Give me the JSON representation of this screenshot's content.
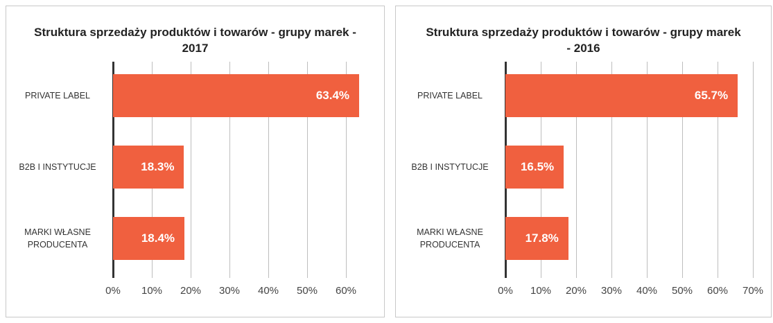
{
  "chart_data": [
    {
      "type": "bar",
      "orientation": "horizontal",
      "title": "Struktura sprzedaży produktów i towarów - grupy marek - 2017",
      "categories": [
        "PRIVATE LABEL",
        "B2B I INSTYTUCJE",
        "MARKI WŁASNE PRODUCENTA"
      ],
      "values": [
        63.4,
        18.3,
        18.4
      ],
      "value_labels": [
        "63.4%",
        "18.3%",
        "18.4%"
      ],
      "color": "#f0603f",
      "xlim": [
        0,
        60
      ],
      "xticks": [
        {
          "value": 0,
          "label": "0%"
        },
        {
          "value": 10,
          "label": "10%"
        },
        {
          "value": 20,
          "label": "20%"
        },
        {
          "value": 30,
          "label": "30%"
        },
        {
          "value": 40,
          "label": "40%"
        },
        {
          "value": 50,
          "label": "50%"
        },
        {
          "value": 60,
          "label": "60%"
        }
      ],
      "grid": true
    },
    {
      "type": "bar",
      "orientation": "horizontal",
      "title": "Struktura sprzedaży produktów i towarów - grupy marek - 2016",
      "categories": [
        "PRIVATE LABEL",
        "B2B I INSTYTUCJE",
        "MARKI WŁASNE PRODUCENTA"
      ],
      "values": [
        65.7,
        16.5,
        17.8
      ],
      "value_labels": [
        "65.7%",
        "16.5%",
        "17.8%"
      ],
      "color": "#f0603f",
      "xlim": [
        0,
        70
      ],
      "xticks": [
        {
          "value": 0,
          "label": "0%"
        },
        {
          "value": 10,
          "label": "10%"
        },
        {
          "value": 20,
          "label": "20%"
        },
        {
          "value": 30,
          "label": "30%"
        },
        {
          "value": 40,
          "label": "40%"
        },
        {
          "value": 50,
          "label": "50%"
        },
        {
          "value": 60,
          "label": "60%"
        },
        {
          "value": 70,
          "label": "70%"
        }
      ],
      "grid": true
    }
  ]
}
